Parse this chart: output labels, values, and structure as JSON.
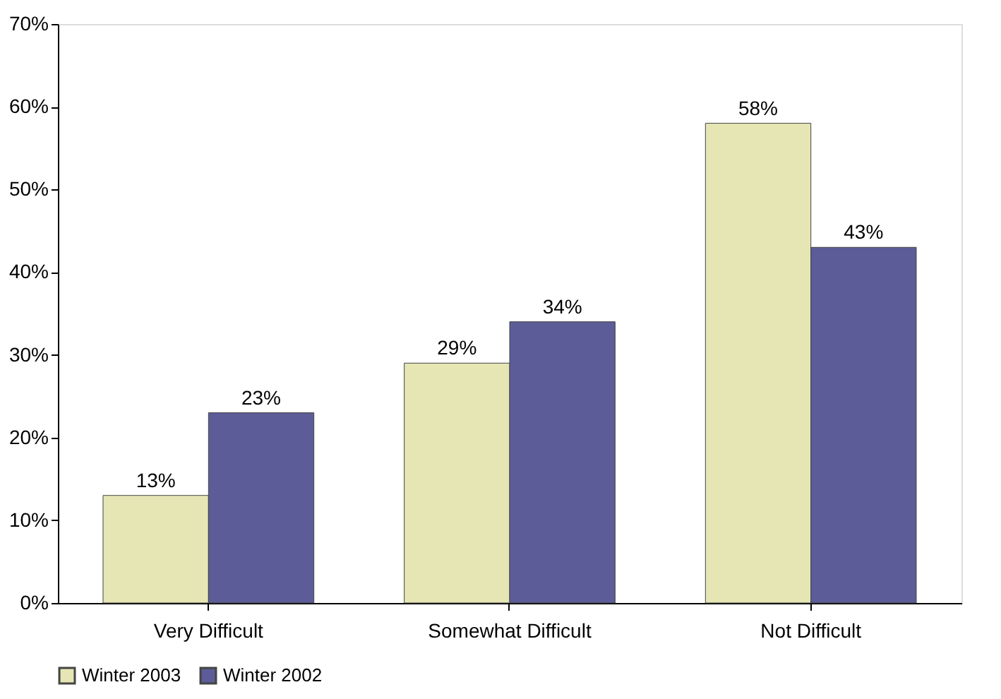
{
  "chart_data": {
    "type": "bar",
    "categories": [
      "Very Difficult",
      "Somewhat Difficult",
      "Not Difficult"
    ],
    "series": [
      {
        "name": "Winter 2003",
        "color": "#e6e6b4",
        "values": [
          13,
          29,
          58
        ],
        "value_labels": [
          "13%",
          "29%",
          "58%"
        ]
      },
      {
        "name": "Winter 2002",
        "color": "#5c5c98",
        "values": [
          23,
          34,
          43
        ],
        "value_labels": [
          "23%",
          "34%",
          "43%"
        ]
      }
    ],
    "ylim": [
      0,
      70
    ],
    "yticks": [
      {
        "value": 0,
        "label": "0%"
      },
      {
        "value": 10,
        "label": "10%"
      },
      {
        "value": 20,
        "label": "20%"
      },
      {
        "value": 30,
        "label": "30%"
      },
      {
        "value": 40,
        "label": "40%"
      },
      {
        "value": 50,
        "label": "50%"
      },
      {
        "value": 60,
        "label": "60%"
      },
      {
        "value": 70,
        "label": "70%"
      }
    ],
    "grid": false,
    "legend": "bottom"
  }
}
